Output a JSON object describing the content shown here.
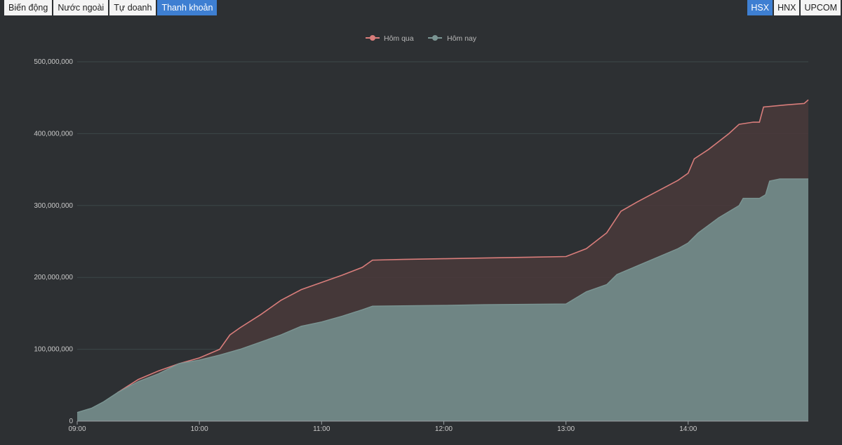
{
  "tabs": [
    {
      "label": "Biến động",
      "active": false
    },
    {
      "label": "Nước ngoài",
      "active": false
    },
    {
      "label": "Tự doanh",
      "active": false
    },
    {
      "label": "Thanh khoản",
      "active": true
    }
  ],
  "exchanges": [
    {
      "label": "HSX",
      "active": true
    },
    {
      "label": "HNX",
      "active": false
    },
    {
      "label": "UPCOM",
      "active": false
    }
  ],
  "colors": {
    "background": "#2d3033",
    "yesterday_line": "#d97d7b",
    "yesterday_fill": "#4a3a3b",
    "today": "#7b9593",
    "today_fill": "#6f8584",
    "grid": "#3d4749",
    "accent": "#3e7fd2"
  },
  "chart_data": {
    "type": "area",
    "title": "",
    "xlabel": "",
    "ylabel": "",
    "grid": true,
    "legend_position": "top-center",
    "xlim": [
      540,
      899
    ],
    "ylim": [
      0,
      500000000
    ],
    "x_ticks": [
      {
        "label": "09:00",
        "value": 540
      },
      {
        "label": "10:00",
        "value": 600
      },
      {
        "label": "11:00",
        "value": 660
      },
      {
        "label": "12:00",
        "value": 720
      },
      {
        "label": "13:00",
        "value": 780
      },
      {
        "label": "14:00",
        "value": 840
      }
    ],
    "y_ticks": [
      {
        "label": "0",
        "value": 0
      },
      {
        "label": "100,000,000",
        "value": 100000000
      },
      {
        "label": "200,000,000",
        "value": 200000000
      },
      {
        "label": "300,000,000",
        "value": 300000000
      },
      {
        "label": "400,000,000",
        "value": 400000000
      },
      {
        "label": "500,000,000",
        "value": 500000000
      }
    ],
    "series": [
      {
        "name": "Hôm qua",
        "points": [
          [
            547,
            5000000
          ],
          [
            550,
            15000000
          ],
          [
            555,
            28000000
          ],
          [
            560,
            40000000
          ],
          [
            570,
            58000000
          ],
          [
            580,
            70000000
          ],
          [
            590,
            80000000
          ],
          [
            600,
            88000000
          ],
          [
            610,
            100000000
          ],
          [
            615,
            120000000
          ],
          [
            620,
            130000000
          ],
          [
            630,
            148000000
          ],
          [
            640,
            168000000
          ],
          [
            650,
            183000000
          ],
          [
            660,
            193000000
          ],
          [
            670,
            203000000
          ],
          [
            680,
            214000000
          ],
          [
            685,
            224000000
          ],
          [
            700,
            225000000
          ],
          [
            720,
            226000000
          ],
          [
            740,
            227000000
          ],
          [
            760,
            228000000
          ],
          [
            780,
            229000000
          ],
          [
            790,
            240000000
          ],
          [
            800,
            262000000
          ],
          [
            807,
            292000000
          ],
          [
            815,
            305000000
          ],
          [
            825,
            320000000
          ],
          [
            835,
            335000000
          ],
          [
            840,
            345000000
          ],
          [
            843,
            365000000
          ],
          [
            850,
            378000000
          ],
          [
            860,
            400000000
          ],
          [
            865,
            413000000
          ],
          [
            872,
            416000000
          ],
          [
            875,
            416000000
          ],
          [
            877,
            437000000
          ],
          [
            888,
            440000000
          ],
          [
            897,
            442000000
          ],
          [
            899,
            447000000
          ]
        ]
      },
      {
        "name": "Hôm nay",
        "points": [
          [
            540,
            12000000
          ],
          [
            547,
            18000000
          ],
          [
            553,
            27000000
          ],
          [
            560,
            40000000
          ],
          [
            570,
            55000000
          ],
          [
            580,
            66000000
          ],
          [
            590,
            80000000
          ],
          [
            600,
            85000000
          ],
          [
            610,
            92000000
          ],
          [
            620,
            100000000
          ],
          [
            630,
            110000000
          ],
          [
            640,
            120000000
          ],
          [
            650,
            132000000
          ],
          [
            660,
            138000000
          ],
          [
            670,
            146000000
          ],
          [
            680,
            155000000
          ],
          [
            685,
            160000000
          ],
          [
            700,
            160500000
          ],
          [
            720,
            161000000
          ],
          [
            740,
            162000000
          ],
          [
            760,
            162500000
          ],
          [
            780,
            163000000
          ],
          [
            790,
            180000000
          ],
          [
            800,
            190000000
          ],
          [
            805,
            204000000
          ],
          [
            815,
            216000000
          ],
          [
            825,
            228000000
          ],
          [
            835,
            240000000
          ],
          [
            840,
            248000000
          ],
          [
            845,
            262000000
          ],
          [
            855,
            283000000
          ],
          [
            865,
            300000000
          ],
          [
            867,
            310000000
          ],
          [
            875,
            310000000
          ],
          [
            878,
            315000000
          ],
          [
            880,
            334000000
          ],
          [
            885,
            337000000
          ],
          [
            899,
            337000000
          ]
        ]
      }
    ]
  }
}
